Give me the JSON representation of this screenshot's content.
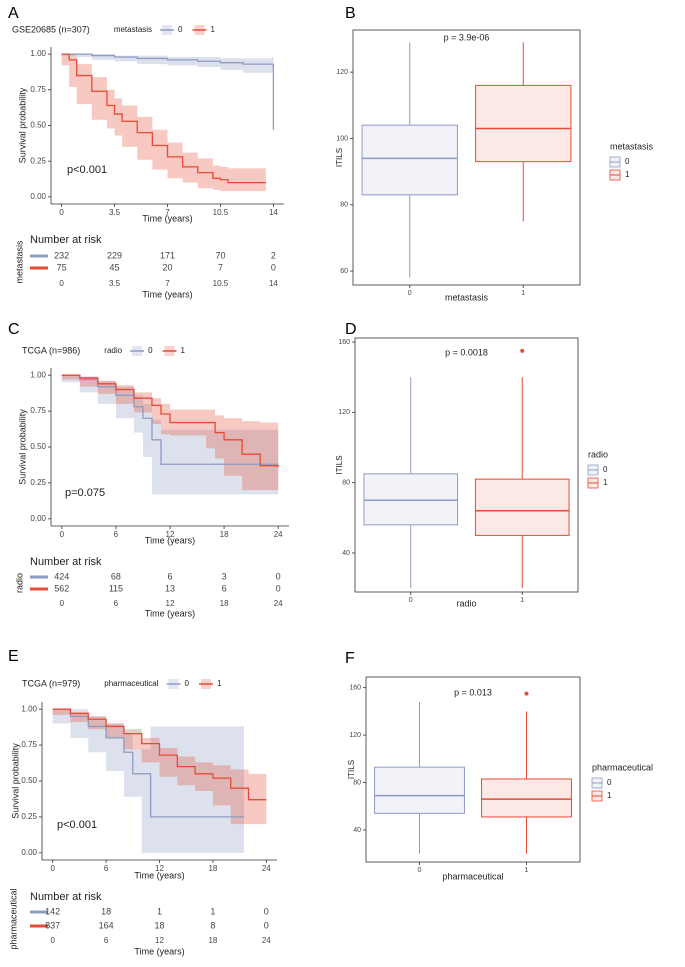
{
  "chart_data": [
    {
      "panel": "A",
      "type": "survival",
      "title": "GSE20685 (n=307)",
      "legend_title": "metastasis",
      "xlabel": "Time (years)",
      "ylabel": "Survival probability",
      "annotation": "p<0.001",
      "xlim": [
        -0.7,
        14.7
      ],
      "xticks": [
        0,
        3.5,
        7,
        10.5,
        14
      ],
      "ylim": [
        -0.05,
        1.05
      ],
      "yticks": [
        {
          "value": 0,
          "label": "0.00"
        },
        {
          "value": 0.25,
          "label": "0.25"
        },
        {
          "value": 0.5,
          "label": "0.50"
        },
        {
          "value": 0.75,
          "label": "0.75"
        },
        {
          "value": 1,
          "label": "1.00"
        }
      ],
      "series": [
        {
          "name": "0",
          "color": "#8e9bc4",
          "x": [
            0,
            1,
            2,
            3.5,
            5,
            7,
            9,
            10.5,
            12,
            13.9,
            14
          ],
          "y": [
            1,
            1,
            0.99,
            0.98,
            0.97,
            0.96,
            0.95,
            0.94,
            0.93,
            0.93,
            0.47
          ],
          "lower": [
            1,
            0.99,
            0.98,
            0.96,
            0.95,
            0.93,
            0.92,
            0.91,
            0.89,
            0.87,
            0.87
          ],
          "upper": [
            1,
            1,
            1,
            0.99,
            0.99,
            0.98,
            0.98,
            0.97,
            0.97,
            0.98,
            0.98
          ]
        },
        {
          "name": "1",
          "color": "#e64b35",
          "x": [
            0,
            0.5,
            1,
            2,
            3,
            3.5,
            4,
            5,
            6,
            7,
            8,
            9,
            10,
            10.5,
            11,
            12,
            13.5
          ],
          "y": [
            1,
            0.96,
            0.85,
            0.74,
            0.64,
            0.58,
            0.53,
            0.45,
            0.36,
            0.28,
            0.21,
            0.17,
            0.13,
            0.12,
            0.1,
            0.1,
            0.1
          ],
          "lower": [
            1,
            0.92,
            0.77,
            0.65,
            0.54,
            0.48,
            0.43,
            0.35,
            0.26,
            0.19,
            0.13,
            0.1,
            0.06,
            0.05,
            0.04,
            0.04,
            0.04
          ],
          "upper": [
            1,
            1,
            0.93,
            0.84,
            0.75,
            0.69,
            0.64,
            0.56,
            0.47,
            0.38,
            0.31,
            0.27,
            0.22,
            0.21,
            0.2,
            0.2,
            0.2
          ]
        }
      ],
      "risk_table": {
        "title": "Number at risk",
        "ylabel": "metastasis",
        "xlabel": "Time (years)",
        "rows": [
          [
            232,
            229,
            171,
            70,
            2
          ],
          [
            75,
            45,
            20,
            7,
            0
          ]
        ]
      }
    },
    {
      "panel": "B",
      "type": "box",
      "annotation": "p = 3.9e-06",
      "xlabel": "metastasis",
      "ylabel": "ITILS",
      "legend_title": "metastasis",
      "categories": [
        "0",
        "1"
      ],
      "ylim": [
        55.8,
        132.7
      ],
      "yticks": [
        60,
        80,
        100,
        120
      ],
      "boxes": [
        {
          "name": "0",
          "color": "#8e9bc4",
          "min": 58,
          "q1": 83,
          "median": 94,
          "q3": 104,
          "max": 129,
          "outliers": []
        },
        {
          "name": "1",
          "color": "#e64b35",
          "min": 75,
          "q1": 93,
          "median": 103,
          "q3": 116,
          "max": 129,
          "outliers": []
        }
      ]
    },
    {
      "panel": "C",
      "type": "survival",
      "title": "TCGA (n=986)",
      "legend_title": "radio",
      "xlabel": "Time (years)",
      "ylabel": "Survival probability",
      "annotation": "p=0.075",
      "xlim": [
        -1.2,
        25.2
      ],
      "xticks": [
        0,
        6,
        12,
        18,
        24
      ],
      "ylim": [
        -0.05,
        1.05
      ],
      "yticks": [
        {
          "value": 0,
          "label": "0.00"
        },
        {
          "value": 0.25,
          "label": "0.25"
        },
        {
          "value": 0.5,
          "label": "0.50"
        },
        {
          "value": 0.75,
          "label": "0.75"
        },
        {
          "value": 1,
          "label": "1.00"
        }
      ],
      "series": [
        {
          "name": "0",
          "color": "#8e9bc4",
          "x": [
            0,
            2,
            4,
            6,
            8,
            9,
            10,
            11,
            12,
            18,
            24
          ],
          "y": [
            1,
            0.97,
            0.92,
            0.86,
            0.78,
            0.7,
            0.55,
            0.38,
            0.38,
            0.38,
            0.38
          ],
          "lower": [
            1,
            0.95,
            0.88,
            0.8,
            0.7,
            0.6,
            0.43,
            0.17,
            0.17,
            0.17,
            0.17
          ],
          "upper": [
            1,
            0.99,
            0.96,
            0.92,
            0.86,
            0.8,
            0.69,
            0.62,
            0.62,
            0.62,
            0.62
          ]
        },
        {
          "name": "1",
          "color": "#e64b35",
          "x": [
            0,
            2,
            4,
            6,
            8,
            10,
            11,
            12,
            16,
            17,
            18,
            20,
            22,
            24
          ],
          "y": [
            1,
            0.98,
            0.94,
            0.9,
            0.84,
            0.79,
            0.73,
            0.67,
            0.67,
            0.6,
            0.55,
            0.45,
            0.37,
            0.36
          ],
          "lower": [
            1,
            0.97,
            0.92,
            0.87,
            0.8,
            0.74,
            0.66,
            0.59,
            0.58,
            0.49,
            0.42,
            0.3,
            0.2,
            0.2
          ],
          "upper": [
            1,
            0.99,
            0.96,
            0.93,
            0.88,
            0.84,
            0.8,
            0.76,
            0.76,
            0.72,
            0.7,
            0.68,
            0.67,
            0.66
          ]
        }
      ],
      "risk_table": {
        "title": "Number at risk",
        "ylabel": "radio",
        "xlabel": "Time (years)",
        "rows": [
          [
            424,
            68,
            6,
            3,
            0
          ],
          [
            562,
            115,
            13,
            6,
            0
          ]
        ]
      }
    },
    {
      "panel": "D",
      "type": "box",
      "annotation": "p = 0.0018",
      "xlabel": "radio",
      "ylabel": "ITILS",
      "legend_title": "radio",
      "categories": [
        "0",
        "1"
      ],
      "ylim": [
        17.8,
        162.3
      ],
      "yticks": [
        40,
        80,
        120,
        160
      ],
      "boxes": [
        {
          "name": "0",
          "color": "#8e9bc4",
          "min": 20,
          "q1": 56,
          "median": 70,
          "q3": 85,
          "max": 140,
          "outliers": []
        },
        {
          "name": "1",
          "color": "#e64b35",
          "min": 20,
          "q1": 50,
          "median": 64,
          "q3": 82,
          "max": 140,
          "outliers": [
            155
          ]
        }
      ]
    },
    {
      "panel": "E",
      "type": "survival",
      "title": "TCGA (n=979)",
      "legend_title": "pharmaceutical",
      "xlabel": "Time (years)",
      "ylabel": "Survival probability",
      "annotation": "p<0.001",
      "xlim": [
        -1.2,
        25.2
      ],
      "xticks": [
        0,
        6,
        12,
        18,
        24
      ],
      "ylim": [
        -0.05,
        1.05
      ],
      "yticks": [
        {
          "value": 0,
          "label": "0.00"
        },
        {
          "value": 0.25,
          "label": "0.25"
        },
        {
          "value": 0.5,
          "label": "0.50"
        },
        {
          "value": 0.75,
          "label": "0.75"
        },
        {
          "value": 1,
          "label": "1.00"
        }
      ],
      "series": [
        {
          "name": "0",
          "color": "#8e9bc4",
          "x": [
            0,
            2,
            4,
            6,
            8,
            9,
            10,
            11,
            21,
            21.5
          ],
          "y": [
            1,
            0.95,
            0.88,
            0.8,
            0.7,
            0.55,
            0.55,
            0.25,
            0.25,
            0.25
          ],
          "lower": [
            1,
            0.9,
            0.8,
            0.7,
            0.57,
            0.39,
            0.39,
            0,
            0,
            0
          ],
          "upper": [
            1,
            1,
            0.95,
            0.9,
            0.83,
            0.72,
            0.72,
            0.88,
            0.88,
            0.88
          ]
        },
        {
          "name": "1",
          "color": "#e64b35",
          "x": [
            0,
            2,
            4,
            6,
            8,
            10,
            12,
            14,
            16,
            18,
            20,
            22,
            24
          ],
          "y": [
            1,
            0.97,
            0.93,
            0.88,
            0.83,
            0.76,
            0.68,
            0.6,
            0.55,
            0.52,
            0.45,
            0.37,
            0.37
          ],
          "lower": [
            1,
            0.96,
            0.91,
            0.86,
            0.8,
            0.72,
            0.63,
            0.53,
            0.47,
            0.43,
            0.33,
            0.2,
            0.2
          ],
          "upper": [
            1,
            0.98,
            0.95,
            0.9,
            0.86,
            0.8,
            0.73,
            0.67,
            0.63,
            0.61,
            0.58,
            0.55,
            0.55
          ]
        }
      ],
      "risk_table": {
        "title": "Number at risk",
        "ylabel": "pharmaceutical",
        "xlabel": "Time (years)",
        "rows": [
          [
            142,
            18,
            1,
            1,
            0
          ],
          [
            837,
            164,
            18,
            8,
            0
          ]
        ]
      }
    },
    {
      "panel": "F",
      "type": "box",
      "annotation": "p = 0.013",
      "xlabel": "pharmaceutical",
      "ylabel": "ITILS",
      "legend_title": "pharmaceutical",
      "categories": [
        "0",
        "1"
      ],
      "ylim": [
        13,
        169
      ],
      "yticks": [
        40,
        80,
        120,
        160
      ],
      "boxes": [
        {
          "name": "0",
          "color": "#8e9bc4",
          "min": 20,
          "q1": 54,
          "median": 69,
          "q3": 93,
          "max": 148,
          "outliers": []
        },
        {
          "name": "1",
          "color": "#e64b35",
          "min": 20,
          "q1": 51,
          "median": 66,
          "q3": 83,
          "max": 140,
          "outliers": [
            155
          ]
        }
      ]
    }
  ]
}
